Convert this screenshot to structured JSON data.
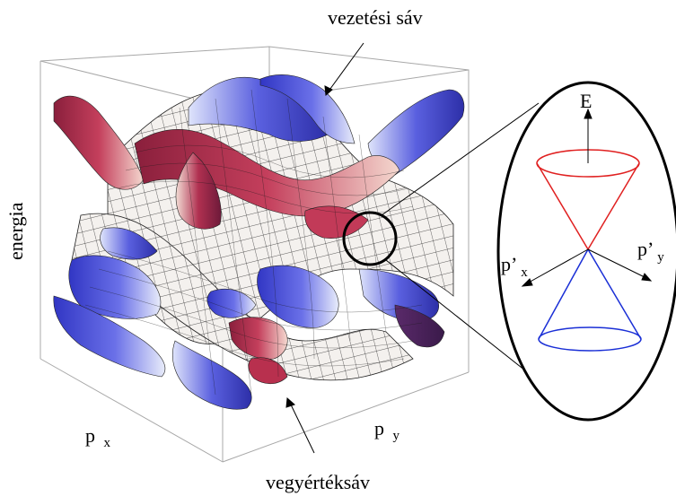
{
  "labels": {
    "top": "vezetési sáv",
    "bottom": "vegyértéksáv",
    "y_axis": "energia",
    "px_main": "p",
    "px_sub": "x",
    "py_main": "p",
    "py_sub": "y",
    "E": "E",
    "px_prime_main": "p’",
    "px_prime_sub": "x",
    "py_prime_main": "p’",
    "py_prime_sub": "y"
  },
  "colors": {
    "upper_cone": "#e02020",
    "lower_cone": "#1a2fd6",
    "surface_blue": "#4a50d8",
    "surface_red": "#a8284a",
    "surface_white": "#f3f0ee",
    "mesh": "#222222",
    "box": "#999999"
  }
}
